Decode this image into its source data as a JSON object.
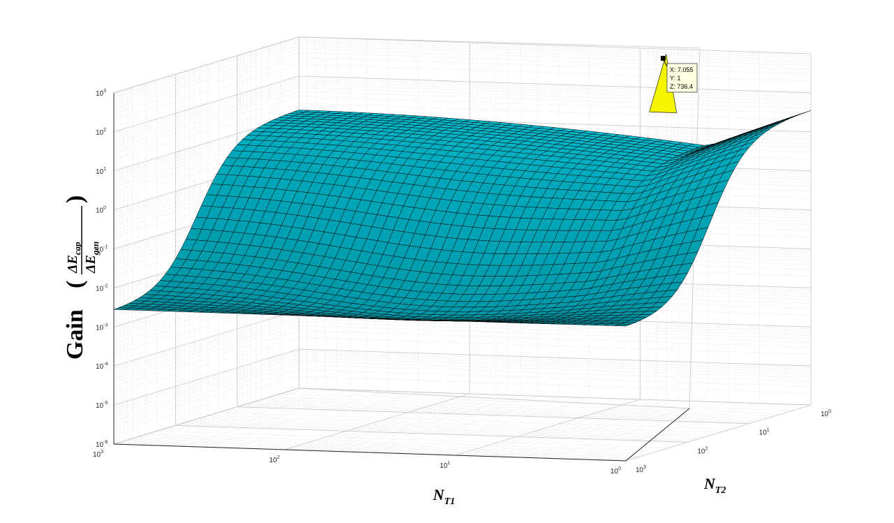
{
  "chart_data": {
    "type": "surface",
    "title": "",
    "xlabel": {
      "base": "N",
      "sub": "T1"
    },
    "ylabel": {
      "base": "N",
      "sub": "T2"
    },
    "zlabel": {
      "text": "Gain",
      "num": "ΔE",
      "num_sub": "cap",
      "den": "ΔE",
      "den_sub": "gen"
    },
    "x_scale": "log",
    "y_scale": "log",
    "z_scale": "log",
    "xlim": [
      1,
      1000
    ],
    "ylim": [
      1,
      1000
    ],
    "zlim": [
      1e-06,
      1000
    ],
    "grid": true,
    "x_ticks": [
      {
        "base": "10",
        "exp": "3"
      },
      {
        "base": "10",
        "exp": "2"
      },
      {
        "base": "10",
        "exp": "1"
      },
      {
        "base": "10",
        "exp": "0"
      }
    ],
    "y_ticks": [
      {
        "base": "10",
        "exp": "0"
      },
      {
        "base": "10",
        "exp": "1"
      },
      {
        "base": "10",
        "exp": "2"
      },
      {
        "base": "10",
        "exp": "3"
      }
    ],
    "z_ticks": [
      {
        "base": "10",
        "exp": "3"
      },
      {
        "base": "10",
        "exp": "2"
      },
      {
        "base": "10",
        "exp": "1"
      },
      {
        "base": "10",
        "exp": "0"
      },
      {
        "base": "10",
        "exp": "-1"
      },
      {
        "base": "10",
        "exp": "-2"
      },
      {
        "base": "10",
        "exp": "-3"
      },
      {
        "base": "10",
        "exp": "-4"
      },
      {
        "base": "10",
        "exp": "-5"
      },
      {
        "base": "10",
        "exp": "-6"
      }
    ],
    "surface_color": "#00bcd0",
    "edge_color": "#000000",
    "highlight_color": "#f5f500",
    "datatip": {
      "lines": [
        "X: 7.055",
        "Y: 1",
        "Z: 736.4"
      ],
      "x": 7.055,
      "y": 1,
      "z": 736.4,
      "background": "#ffffe1"
    }
  }
}
